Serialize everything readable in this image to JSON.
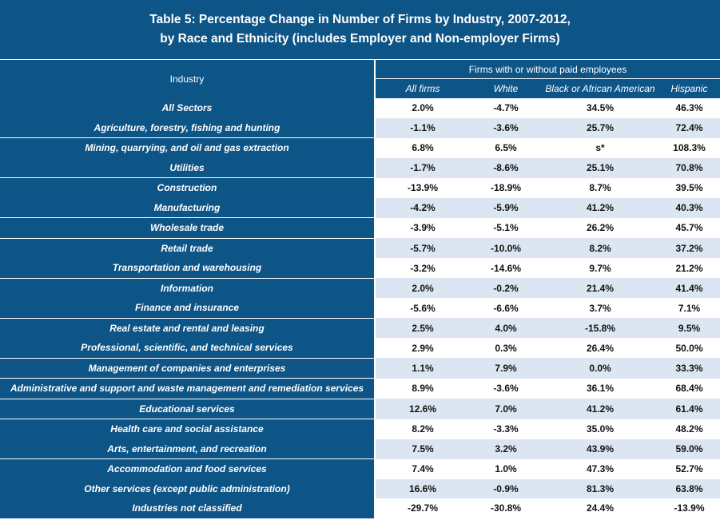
{
  "title_line1": "Table 5: Percentage Change in Number of Firms by Industry, 2007-2012,",
  "title_line2": "by Race and Ethnicity (includes Employer and Non-employer Firms)",
  "header": {
    "industry": "Industry",
    "group": "Firms with or without paid employees",
    "columns": [
      "All firms",
      "White",
      "Black or African American",
      "Hispanic"
    ]
  },
  "rows": [
    {
      "industry": "All Sectors",
      "values": [
        "2.0%",
        "-4.7%",
        "34.5%",
        "46.3%"
      ]
    },
    {
      "industry": "Agriculture, forestry, fishing and hunting",
      "values": [
        "-1.1%",
        "-3.6%",
        "25.7%",
        "72.4%"
      ]
    },
    {
      "industry": "Mining, quarrying, and oil and gas extraction",
      "values": [
        "6.8%",
        "6.5%",
        "s*",
        "108.3%"
      ]
    },
    {
      "industry": "Utilities",
      "values": [
        "-1.7%",
        "-8.6%",
        "25.1%",
        "70.8%"
      ]
    },
    {
      "industry": "Construction",
      "values": [
        "-13.9%",
        "-18.9%",
        "8.7%",
        "39.5%"
      ]
    },
    {
      "industry": "Manufacturing",
      "values": [
        "-4.2%",
        "-5.9%",
        "41.2%",
        "40.3%"
      ]
    },
    {
      "industry": "Wholesale trade",
      "values": [
        "-3.9%",
        "-5.1%",
        "26.2%",
        "45.7%"
      ]
    },
    {
      "industry": "Retail trade",
      "values": [
        "-5.7%",
        "-10.0%",
        "8.2%",
        "37.2%"
      ]
    },
    {
      "industry": "Transportation and warehousing",
      "values": [
        "-3.2%",
        "-14.6%",
        "9.7%",
        "21.2%"
      ]
    },
    {
      "industry": "Information",
      "values": [
        "2.0%",
        "-0.2%",
        "21.4%",
        "41.4%"
      ]
    },
    {
      "industry": "Finance and insurance",
      "values": [
        "-5.6%",
        "-6.6%",
        "3.7%",
        "7.1%"
      ]
    },
    {
      "industry": "Real estate and rental and leasing",
      "values": [
        "2.5%",
        "4.0%",
        "-15.8%",
        "9.5%"
      ]
    },
    {
      "industry": "Professional, scientific, and technical services",
      "values": [
        "2.9%",
        "0.3%",
        "26.4%",
        "50.0%"
      ]
    },
    {
      "industry": "Management of companies and enterprises",
      "values": [
        "1.1%",
        "7.9%",
        "0.0%",
        "33.3%"
      ]
    },
    {
      "industry": "Administrative and support and waste management and remediation services",
      "values": [
        "8.9%",
        "-3.6%",
        "36.1%",
        "68.4%"
      ]
    },
    {
      "industry": "Educational services",
      "values": [
        "12.6%",
        "7.0%",
        "41.2%",
        "61.4%"
      ]
    },
    {
      "industry": "Health care and social assistance",
      "values": [
        "8.2%",
        "-3.3%",
        "35.0%",
        "48.2%"
      ]
    },
    {
      "industry": "Arts, entertainment, and recreation",
      "values": [
        "7.5%",
        "3.2%",
        "43.9%",
        "59.0%"
      ]
    },
    {
      "industry": "Accommodation and food services",
      "values": [
        "7.4%",
        "1.0%",
        "47.3%",
        "52.7%"
      ]
    },
    {
      "industry": "Other services (except public administration)",
      "values": [
        "16.6%",
        "-0.9%",
        "81.3%",
        "63.8%"
      ]
    },
    {
      "industry": "Industries not classified",
      "values": [
        "-29.7%",
        "-30.8%",
        "24.4%",
        "-13.9%"
      ]
    }
  ]
}
